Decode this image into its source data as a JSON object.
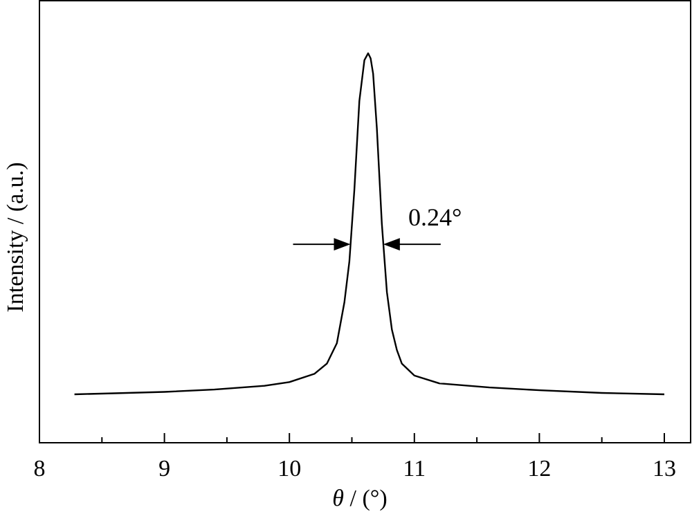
{
  "chart_data": {
    "type": "line",
    "title": "",
    "xlabel_symbol": "θ",
    "xlabel_unit": " / (°)",
    "ylabel": "Intensity / (a.u.)",
    "xlim": [
      8,
      13
    ],
    "ylim": [
      0,
      1.12
    ],
    "xticks": [
      "8",
      "9",
      "10",
      "11",
      "12",
      "13"
    ],
    "grid": false,
    "annotation": {
      "text": "0.24°",
      "fwhm_left": 10.5,
      "fwhm_right": 10.74,
      "level": 0.44
    },
    "series": [
      {
        "x": [
          8.28,
          8.6,
          9.0,
          9.4,
          9.8,
          10.0,
          10.2,
          10.3,
          10.38,
          10.44,
          10.48,
          10.52,
          10.56,
          10.6,
          10.63,
          10.65,
          10.67,
          10.7,
          10.74,
          10.78,
          10.82,
          10.86,
          10.9,
          11.0,
          11.2,
          11.6,
          12.0,
          12.5,
          13.0
        ],
        "y": [
          0.0,
          0.003,
          0.007,
          0.014,
          0.025,
          0.036,
          0.06,
          0.09,
          0.15,
          0.27,
          0.39,
          0.6,
          0.86,
          0.98,
          1.0,
          0.985,
          0.94,
          0.78,
          0.5,
          0.3,
          0.19,
          0.13,
          0.09,
          0.055,
          0.032,
          0.02,
          0.012,
          0.004,
          0.0
        ]
      }
    ]
  }
}
